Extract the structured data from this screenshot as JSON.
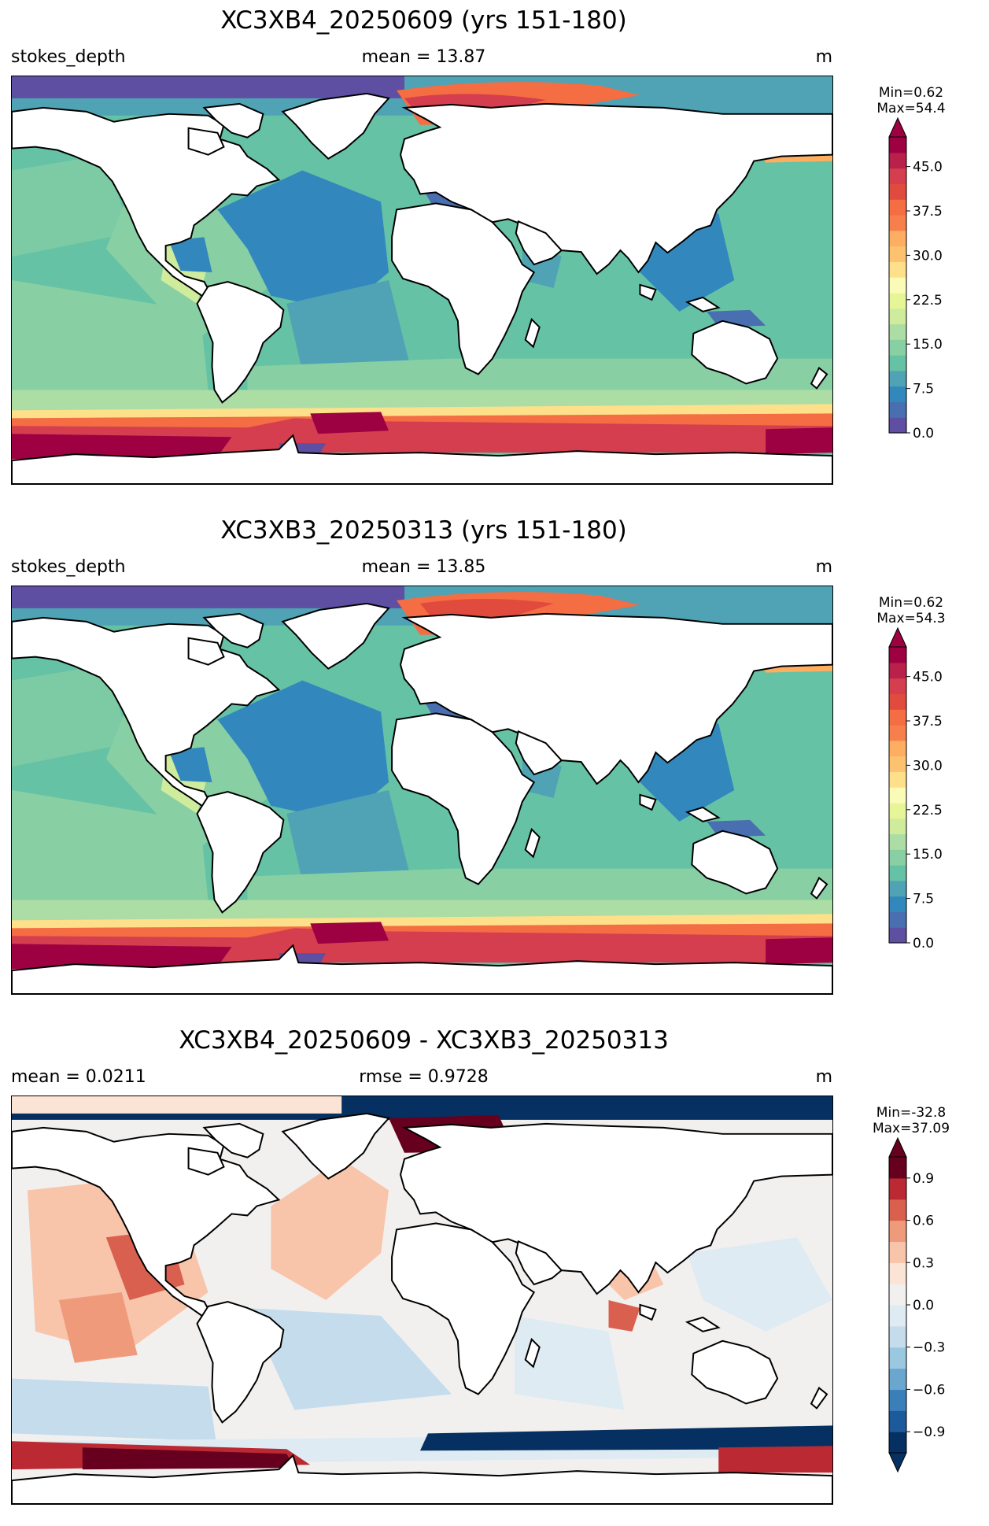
{
  "panels": [
    {
      "title": "XC3XB4_20250609 (yrs 151-180)",
      "left_label": "stokes_depth",
      "center_label": "mean = 13.87",
      "right_label": "m",
      "min_text": "Min=0.62",
      "max_text": "Max=54.4",
      "colormap": "Spectral_r",
      "colorbar": {
        "colors": [
          "#5e4fa2",
          "#4a6fb0",
          "#3288bd",
          "#4fa3b4",
          "#66c2a5",
          "#88cfa4",
          "#abdda4",
          "#cfec9d",
          "#e6f598",
          "#fbfbb8",
          "#fee08b",
          "#fdc26f",
          "#fdae61",
          "#f67f4c",
          "#f46d43",
          "#e04b3d",
          "#d53e4f",
          "#b8224a",
          "#9e0142"
        ],
        "ticks": [
          "0.0",
          "7.5",
          "15.0",
          "22.5",
          "30.0",
          "37.5",
          "45.0"
        ],
        "vmin": 0.0,
        "vmax": 50.0,
        "extend": "max"
      }
    },
    {
      "title": "XC3XB3_20250313 (yrs 151-180)",
      "left_label": "stokes_depth",
      "center_label": "mean = 13.85",
      "right_label": "m",
      "min_text": "Min=0.62",
      "max_text": "Max=54.3",
      "colormap": "Spectral_r",
      "colorbar": {
        "colors": [
          "#5e4fa2",
          "#4a6fb0",
          "#3288bd",
          "#4fa3b4",
          "#66c2a5",
          "#88cfa4",
          "#abdda4",
          "#cfec9d",
          "#e6f598",
          "#fbfbb8",
          "#fee08b",
          "#fdc26f",
          "#fdae61",
          "#f67f4c",
          "#f46d43",
          "#e04b3d",
          "#d53e4f",
          "#b8224a",
          "#9e0142"
        ],
        "ticks": [
          "0.0",
          "7.5",
          "15.0",
          "22.5",
          "30.0",
          "37.5",
          "45.0"
        ],
        "vmin": 0.0,
        "vmax": 50.0,
        "extend": "max"
      }
    },
    {
      "title": "XC3XB4_20250609 - XC3XB3_20250313",
      "left_label": "mean = 0.0211",
      "center_label": "rmse = 0.9728",
      "right_label": "m",
      "min_text": "Min=-32.8",
      "max_text": "Max=37.09",
      "colormap": "RdBu_r",
      "colorbar": {
        "colors": [
          "#053061",
          "#1d5a9b",
          "#3a7fb8",
          "#6aa6cd",
          "#9ac8e0",
          "#c4dcec",
          "#deebf3",
          "#f2f0ef",
          "#fbe3d6",
          "#f8c4aa",
          "#ef9b7b",
          "#d9604f",
          "#bb2a33",
          "#67001f"
        ],
        "ticks": [
          "−0.9",
          "−0.6",
          "−0.3",
          "0.0",
          "0.3",
          "0.6",
          "0.9"
        ],
        "vmin": -1.05,
        "vmax": 1.05,
        "extend": "both"
      }
    }
  ]
}
